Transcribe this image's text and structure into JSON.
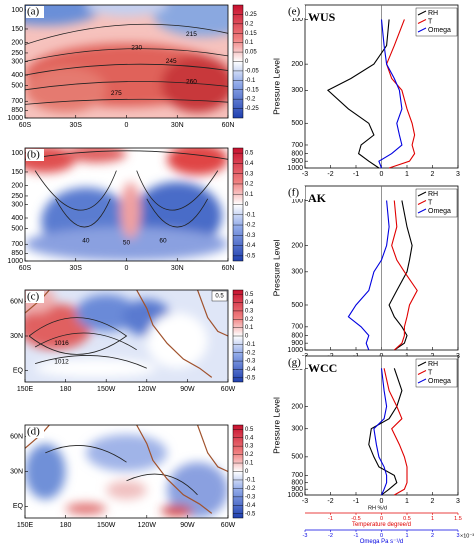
{
  "chart_data": [
    {
      "type": "contour",
      "label": "(a)",
      "xlim": [
        -60,
        60
      ],
      "xticks": [
        {
          "value": -60,
          "label": "60S"
        },
        {
          "value": -30,
          "label": "30S"
        },
        0,
        {
          "value": 30,
          "label": "30N"
        },
        {
          "value": 60,
          "label": "60N"
        }
      ],
      "ylim": [
        1000,
        90
      ],
      "log_y": true,
      "yticks": [
        100,
        150,
        200,
        250,
        300,
        400,
        500,
        700,
        850,
        1000
      ],
      "clim": [
        -0.3,
        0.3
      ],
      "colorbar_ticks": [
        0.25,
        0.2,
        0.15,
        0.1,
        0.05,
        0,
        -0.05,
        -0.1,
        -0.15,
        -0.2,
        -0.25
      ],
      "contour_labels": [
        215,
        230,
        245,
        260,
        275
      ]
    },
    {
      "type": "contour",
      "label": "(b)",
      "xlim": [
        -60,
        60
      ],
      "xticks": [
        {
          "value": -60,
          "label": "60S"
        },
        {
          "value": -30,
          "label": "30S"
        },
        0,
        {
          "value": 30,
          "label": "30N"
        },
        {
          "value": 60,
          "label": "60N"
        }
      ],
      "ylim": [
        1000,
        90
      ],
      "log_y": true,
      "yticks": [
        100,
        150,
        200,
        250,
        300,
        400,
        500,
        700,
        850,
        1000
      ],
      "clim": [
        -0.55,
        0.55
      ],
      "colorbar_ticks": [
        0.5,
        0.4,
        0.3,
        0.2,
        0.1,
        0,
        -0.1,
        -0.2,
        -0.3,
        -0.4,
        -0.5
      ],
      "contour_labels": [
        40,
        50,
        60
      ]
    },
    {
      "type": "map",
      "label": "(c)",
      "xlim": [
        150,
        300
      ],
      "xticks": [
        {
          "value": 150,
          "label": "150E"
        },
        180,
        {
          "value": 210,
          "label": "150W"
        },
        {
          "value": 240,
          "label": "120W"
        },
        {
          "value": 270,
          "label": "90W"
        },
        {
          "value": 300,
          "label": "60W"
        }
      ],
      "ylim": [
        -10,
        70
      ],
      "yticks": [
        {
          "value": 60,
          "label": "60N"
        },
        {
          "value": 30,
          "label": "30N"
        },
        {
          "value": 0,
          "label": "EQ"
        }
      ],
      "clim": [
        -0.55,
        0.55
      ],
      "colorbar_ticks": [
        0.5,
        0.4,
        0.3,
        0.2,
        0.1,
        0,
        -0.1,
        -0.2,
        -0.3,
        -0.4,
        -0.5
      ],
      "contour_labels": [
        1016,
        1012
      ],
      "ref_vector": 0.5
    },
    {
      "type": "map",
      "label": "(d)",
      "xlim": [
        150,
        300
      ],
      "xticks": [
        {
          "value": 150,
          "label": "150E"
        },
        180,
        {
          "value": 210,
          "label": "150W"
        },
        {
          "value": 240,
          "label": "120W"
        },
        {
          "value": 270,
          "label": "90W"
        },
        {
          "value": 300,
          "label": "60W"
        }
      ],
      "ylim": [
        -10,
        70
      ],
      "yticks": [
        {
          "value": 60,
          "label": "60N"
        },
        {
          "value": 30,
          "label": "30N"
        },
        {
          "value": 0,
          "label": "EQ"
        }
      ],
      "clim": [
        -0.55,
        0.55
      ],
      "colorbar_ticks": [
        0.5,
        0.4,
        0.3,
        0.2,
        0.1,
        0,
        -0.1,
        -0.2,
        -0.3,
        -0.4,
        -0.5
      ]
    },
    {
      "type": "line",
      "label": "(e)",
      "title": "WUS",
      "y_label": "Pressure Level",
      "y": [
        100,
        150,
        200,
        250,
        300,
        400,
        500,
        600,
        700,
        800,
        900,
        1000
      ],
      "ylim": [
        1000,
        80
      ],
      "log_y": true,
      "yticks": [
        100,
        200,
        300,
        500,
        700,
        800,
        900,
        1000
      ],
      "xlim": [
        -3,
        3
      ],
      "xticks": [
        -3,
        -2,
        -1,
        0,
        1,
        2,
        3
      ],
      "legend": "upper right",
      "series": [
        {
          "name": "RH",
          "color": "#000000",
          "values": [
            0.3,
            0.2,
            -0.3,
            -1.2,
            -2.1,
            -1.3,
            -0.5,
            -0.3,
            -0.8,
            -0.9,
            -0.5,
            -0.1
          ]
        },
        {
          "name": "T",
          "color": "#e00000",
          "values": [
            0.9,
            0.5,
            0.2,
            0.4,
            0.8,
            1.0,
            1.2,
            1.3,
            1.2,
            1.3,
            1.1,
            0.3
          ]
        },
        {
          "name": "Omega",
          "color": "#0000e0",
          "values": [
            0.0,
            0.1,
            0.2,
            0.5,
            0.7,
            0.8,
            0.6,
            0.7,
            0.8,
            0.4,
            -0.1,
            0.0
          ]
        }
      ]
    },
    {
      "type": "line",
      "label": "(f)",
      "title": "AK",
      "y_label": "Pressure Level",
      "y": [
        100,
        150,
        200,
        250,
        300,
        400,
        500,
        600,
        700,
        800,
        900,
        1000
      ],
      "ylim": [
        1000,
        80
      ],
      "log_y": true,
      "yticks": [
        100,
        200,
        300,
        500,
        700,
        800,
        900,
        1000
      ],
      "xlim": [
        -3,
        3
      ],
      "xticks": [
        -3,
        -2,
        -1,
        0,
        1,
        2,
        3
      ],
      "legend": "upper right",
      "series": [
        {
          "name": "RH",
          "color": "#000000",
          "values": [
            0.8,
            1.0,
            1.2,
            1.1,
            1.0,
            0.6,
            0.3,
            0.5,
            0.8,
            1.0,
            0.9,
            0.5
          ]
        },
        {
          "name": "T",
          "color": "#e00000",
          "values": [
            0.5,
            0.6,
            0.4,
            0.6,
            0.9,
            1.4,
            1.1,
            1.0,
            0.9,
            0.9,
            0.8,
            0.5
          ]
        },
        {
          "name": "Omega",
          "color": "#0000e0",
          "values": [
            0.2,
            0.3,
            0.2,
            0.0,
            -0.3,
            -0.5,
            -1.0,
            -1.3,
            -0.8,
            -0.5,
            -0.6,
            -0.5
          ]
        }
      ]
    },
    {
      "type": "line",
      "label": "(g)",
      "title": "WCC",
      "y_label": "Pressure Level",
      "x_label": "RH %/d",
      "y": [
        100,
        150,
        200,
        250,
        300,
        400,
        500,
        600,
        700,
        800,
        900,
        1000
      ],
      "ylim": [
        1000,
        80
      ],
      "log_y": true,
      "yticks": [
        100,
        200,
        300,
        500,
        700,
        800,
        900,
        1000
      ],
      "xlim": [
        -3,
        3
      ],
      "xticks": [
        -3,
        -2,
        -1,
        0,
        1,
        2,
        3
      ],
      "legend": "upper right",
      "series": [
        {
          "name": "RH",
          "color": "#000000",
          "values": [
            0.5,
            0.8,
            0.6,
            0.3,
            -0.4,
            -0.5,
            -0.3,
            -0.1,
            0.5,
            0.6,
            0.3,
            0.0
          ]
        },
        {
          "name": "T",
          "color": "#e00000",
          "values": [
            0.1,
            0.3,
            0.6,
            0.8,
            0.4,
            0.7,
            0.9,
            1.0,
            1.0,
            1.0,
            0.9,
            0.5
          ]
        },
        {
          "name": "Omega",
          "color": "#0000e0",
          "values": [
            0.0,
            0.1,
            0.2,
            0.1,
            -0.3,
            -0.2,
            -0.1,
            0.1,
            0.2,
            0.2,
            0.1,
            0.0
          ]
        }
      ],
      "extra_axes": [
        {
          "label": "Temperature degree/d",
          "color": "#e00000",
          "xlim": [
            -1.5,
            1.5
          ],
          "xticks": [
            -1,
            -0.5,
            0,
            0.5,
            1,
            1.5
          ]
        },
        {
          "label": "Omega Pa s⁻¹/d",
          "color": "#0000e0",
          "xlim": [
            -3,
            3
          ],
          "xticks": [
            -3,
            -2,
            -1,
            0,
            1,
            2,
            3
          ],
          "multiplier": "×10⁻³"
        }
      ]
    }
  ]
}
